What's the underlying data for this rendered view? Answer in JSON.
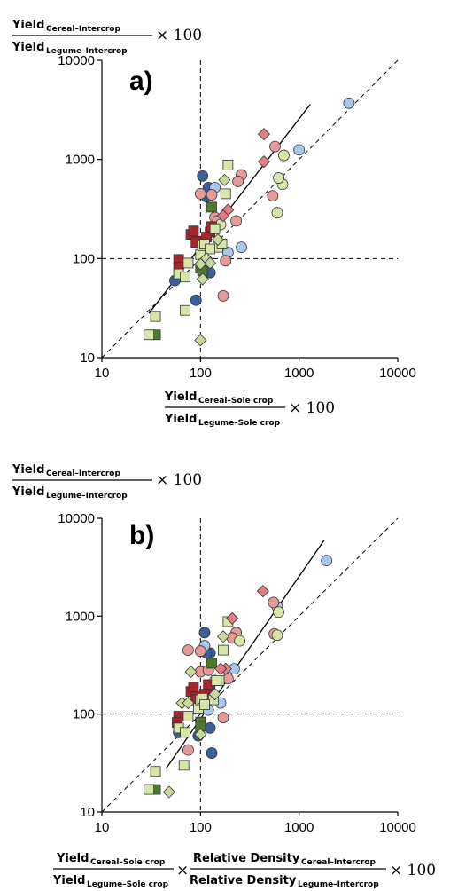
{
  "colors": {
    "dark_blue": "#3b5f9a",
    "light_blue": "#a9c7ec",
    "pink": "#e79a9a",
    "dark_red": "#a7262c",
    "light_green": "#d6e6a9",
    "dark_green": "#4d7a2e",
    "diamond_pink": "#e07e86",
    "diamond_green": "#c7d99b"
  },
  "chart_data": [
    {
      "type": "scatter",
      "panel_label": "a)",
      "y_axis_label": {
        "numerator": {
          "main": "Yield",
          "sub": "Cereal–Intercrop"
        },
        "denominator": {
          "main": "Yield",
          "sub": "Legume–Intercrop"
        },
        "times": "× 100"
      },
      "x_axis_label": {
        "numerator": {
          "main": "Yield",
          "sub": "Cereal–Sole crop"
        },
        "denominator": {
          "main": "Yield",
          "sub": "Legume–Sole crop"
        },
        "times": "× 100"
      },
      "xscale": "log",
      "yscale": "log",
      "xlim": [
        10,
        10000
      ],
      "ylim": [
        10,
        10000
      ],
      "x_ticks": [
        "10",
        "100",
        "1000",
        "10000"
      ],
      "y_ticks": [
        "10",
        "100",
        "1000",
        "10000"
      ],
      "reference_lines": {
        "dashed_1to1": true,
        "dashed_x": 100,
        "dashed_y": 100
      },
      "fit_line": {
        "x": [
          30,
          1300
        ],
        "y": [
          28,
          3600
        ]
      },
      "series": [
        {
          "marker": "circle",
          "color": "dark_blue",
          "points": [
            [
              105,
              680
            ],
            [
              120,
              520
            ],
            [
              55,
              60
            ],
            [
              90,
              38
            ],
            [
              125,
              72
            ],
            [
              115,
              420
            ]
          ]
        },
        {
          "marker": "circle",
          "color": "light_blue",
          "points": [
            [
              140,
              520
            ],
            [
              1000,
              1250
            ],
            [
              3200,
              3700
            ],
            [
              260,
              130
            ],
            [
              190,
              115
            ]
          ]
        },
        {
          "marker": "circle",
          "color": "pink",
          "points": [
            [
              100,
              450
            ],
            [
              130,
              440
            ],
            [
              260,
              700
            ],
            [
              240,
              600
            ],
            [
              230,
              240
            ],
            [
              180,
              95
            ],
            [
              170,
              42
            ],
            [
              570,
              1350
            ],
            [
              540,
              430
            ],
            [
              140,
              260
            ],
            [
              150,
              240
            ]
          ]
        },
        {
          "marker": "circle",
          "color": "light_green",
          "points": [
            [
              700,
              1100
            ],
            [
              680,
              560
            ],
            [
              620,
              650
            ],
            [
              600,
              290
            ],
            [
              160,
              220
            ]
          ]
        },
        {
          "marker": "square",
          "color": "dark_red",
          "points": [
            [
              80,
              175
            ],
            [
              85,
              190
            ],
            [
              60,
              98
            ],
            [
              60,
              82
            ],
            [
              95,
              150
            ],
            [
              125,
              185
            ],
            [
              130,
              210
            ],
            [
              90,
              145
            ],
            [
              115,
              165
            ]
          ]
        },
        {
          "marker": "square",
          "color": "dark_green",
          "points": [
            [
              130,
              330
            ],
            [
              35,
              17
            ],
            [
              100,
              80
            ],
            [
              105,
              75
            ]
          ]
        },
        {
          "marker": "square",
          "color": "light_green",
          "points": [
            [
              190,
              880
            ],
            [
              180,
              450
            ],
            [
              100,
              110
            ],
            [
              75,
              90
            ],
            [
              60,
              70
            ],
            [
              70,
              65
            ],
            [
              70,
              30
            ],
            [
              35,
              26
            ],
            [
              30,
              17
            ],
            [
              150,
              130
            ],
            [
              165,
              140
            ],
            [
              105,
              135
            ],
            [
              110,
              140
            ],
            [
              125,
              125
            ],
            [
              140,
              200
            ]
          ]
        },
        {
          "marker": "diamond",
          "color": "diamond_pink",
          "points": [
            [
              440,
              1800
            ],
            [
              440,
              950
            ],
            [
              190,
              310
            ],
            [
              170,
              270
            ]
          ]
        },
        {
          "marker": "diamond",
          "color": "diamond_green",
          "points": [
            [
              175,
              620
            ],
            [
              150,
              155
            ],
            [
              100,
              15
            ],
            [
              115,
              100
            ],
            [
              105,
              62
            ],
            [
              125,
              90
            ],
            [
              100,
              88
            ]
          ]
        }
      ]
    },
    {
      "type": "scatter",
      "panel_label": "b)",
      "y_axis_label": {
        "numerator": {
          "main": "Yield",
          "sub": "Cereal–Intercrop"
        },
        "denominator": {
          "main": "Yield",
          "sub": "Legume–Intercrop"
        },
        "times": "× 100"
      },
      "x_axis_label": {
        "term1_numerator": {
          "main": "Yield",
          "sub": "Cereal–Sole crop"
        },
        "term1_denominator": {
          "main": "Yield",
          "sub": "Legume–Sole crop"
        },
        "term2_numerator": {
          "main": "Relative Density",
          "sub": "Cereal–Intercrop"
        },
        "term2_denominator": {
          "main": "Relative Density",
          "sub": "Legume–Intercrop"
        },
        "times": "×",
        "times100": "× 100"
      },
      "xscale": "log",
      "yscale": "log",
      "xlim": [
        10,
        10000
      ],
      "ylim": [
        10,
        10000
      ],
      "x_ticks": [
        "10",
        "100",
        "1000",
        "10000"
      ],
      "y_ticks": [
        "10",
        "100",
        "1000",
        "10000"
      ],
      "reference_lines": {
        "dashed_1to1": true,
        "dashed_x": 100,
        "dashed_y": 100
      },
      "fit_line": {
        "x": [
          45,
          1800
        ],
        "y": [
          28,
          6000
        ]
      },
      "series": [
        {
          "marker": "circle",
          "color": "dark_blue",
          "points": [
            [
              110,
              680
            ],
            [
              125,
              420
            ],
            [
              60,
              65
            ],
            [
              95,
              60
            ],
            [
              130,
              40
            ],
            [
              125,
              72
            ],
            [
              115,
              420
            ]
          ]
        },
        {
          "marker": "circle",
          "color": "light_blue",
          "points": [
            [
              110,
              500
            ],
            [
              600,
              1250
            ],
            [
              1900,
              3700
            ],
            [
              160,
              130
            ],
            [
              120,
              110
            ],
            [
              220,
              290
            ]
          ]
        },
        {
          "marker": "circle",
          "color": "pink",
          "points": [
            [
              75,
              450
            ],
            [
              100,
              440
            ],
            [
              230,
              680
            ],
            [
              210,
              600
            ],
            [
              190,
              230
            ],
            [
              170,
              92
            ],
            [
              75,
              43
            ],
            [
              550,
              1380
            ],
            [
              560,
              660
            ],
            [
              100,
              270
            ],
            [
              120,
              280
            ]
          ]
        },
        {
          "marker": "circle",
          "color": "light_green",
          "points": [
            [
              620,
              1100
            ],
            [
              600,
              640
            ],
            [
              250,
              560
            ],
            [
              140,
              220
            ]
          ]
        },
        {
          "marker": "square",
          "color": "dark_red",
          "points": [
            [
              80,
              170
            ],
            [
              85,
              190
            ],
            [
              60,
              95
            ],
            [
              58,
              82
            ],
            [
              90,
              150
            ],
            [
              125,
              180
            ],
            [
              120,
              200
            ],
            [
              90,
              140
            ],
            [
              110,
              160
            ]
          ]
        },
        {
          "marker": "square",
          "color": "dark_green",
          "points": [
            [
              130,
              330
            ],
            [
              35,
              17
            ],
            [
              100,
              83
            ],
            [
              100,
              75
            ]
          ]
        },
        {
          "marker": "square",
          "color": "light_green",
          "points": [
            [
              190,
              880
            ],
            [
              170,
              450
            ],
            [
              95,
              115
            ],
            [
              75,
              95
            ],
            [
              60,
              72
            ],
            [
              70,
              65
            ],
            [
              68,
              30
            ],
            [
              35,
              26
            ],
            [
              30,
              17
            ],
            [
              135,
              140
            ],
            [
              155,
              220
            ],
            [
              100,
              140
            ],
            [
              105,
              145
            ],
            [
              110,
              125
            ],
            [
              145,
              220
            ]
          ]
        },
        {
          "marker": "diamond",
          "color": "diamond_pink",
          "points": [
            [
              430,
              1800
            ],
            [
              210,
              950
            ],
            [
              180,
              290
            ],
            [
              160,
              290
            ]
          ]
        },
        {
          "marker": "diamond",
          "color": "diamond_green",
          "points": [
            [
              170,
              620
            ],
            [
              140,
              160
            ],
            [
              48,
              16
            ],
            [
              80,
              270
            ],
            [
              100,
              62
            ],
            [
              65,
              130
            ],
            [
              75,
              130
            ]
          ]
        }
      ]
    }
  ]
}
